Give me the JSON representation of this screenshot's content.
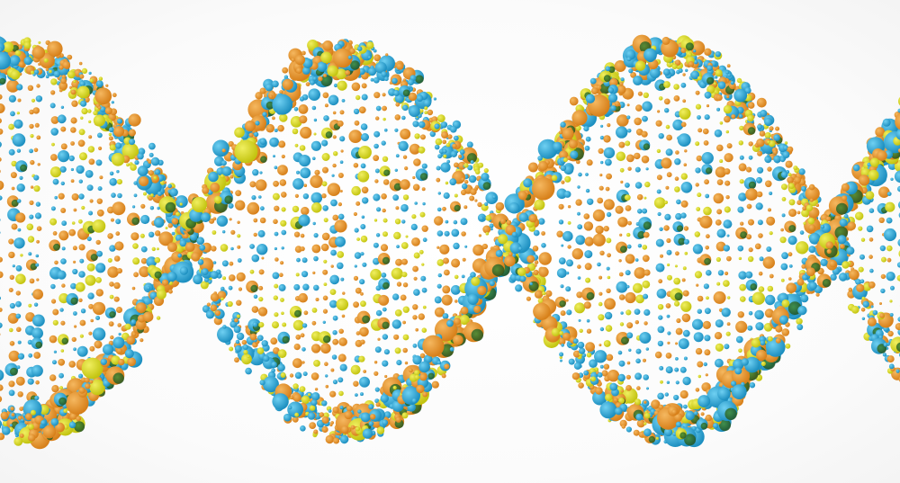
{
  "image": {
    "subject": "dna-double-helix-illustration",
    "background_color": "#ffffff",
    "palette": {
      "blue": "#2aa7d6",
      "orange": "#e8952a",
      "yellow": "#d9d820",
      "dark_green": "#2d6a2a"
    }
  }
}
